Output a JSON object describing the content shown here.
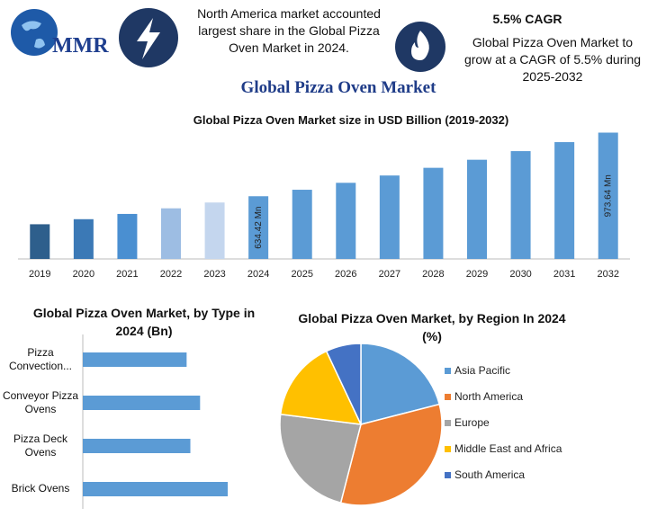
{
  "header": {
    "logo": "MMR",
    "left_note": "North America market accounted largest share in the Global Pizza Oven Market in 2024.",
    "cagr_title": "5.5% CAGR",
    "cagr_note": "Global Pizza Oven Market to grow at a CAGR of 5.5% during 2025-2032",
    "title": "Global Pizza Oven Market"
  },
  "chart_data": [
    {
      "type": "bar",
      "title": "Global Pizza Oven Market size in USD Billion (2019-2032)",
      "categories": [
        "2019",
        "2020",
        "2021",
        "2022",
        "2023",
        "2024",
        "2025",
        "2026",
        "2027",
        "2028",
        "2029",
        "2030",
        "2031",
        "2032"
      ],
      "values": [
        485,
        512,
        540,
        570,
        601,
        634.42,
        669,
        706,
        745,
        786,
        829,
        875,
        923,
        973.64
      ],
      "value_labels": [
        null,
        null,
        null,
        null,
        null,
        "634.42 Mn",
        null,
        null,
        null,
        null,
        null,
        null,
        null,
        "973.64 Mn"
      ],
      "colors": [
        "#2e5f8c",
        "#3b79b6",
        "#4a8fd1",
        "#9dbde3",
        "#c4d6ee",
        "#5b9bd5",
        "#5b9bd5",
        "#5b9bd5",
        "#5b9bd5",
        "#5b9bd5",
        "#5b9bd5",
        "#5b9bd5",
        "#5b9bd5",
        "#5b9bd5"
      ],
      "ylim": [
        300,
        1000
      ]
    },
    {
      "type": "bar",
      "orientation": "horizontal",
      "title": "Global Pizza Oven Market, by Type in 2024 (Bn)",
      "categories": [
        "Pizza Convection...",
        "Conveyor Pizza Ovens",
        "Pizza Deck Ovens",
        "Brick Ovens"
      ],
      "values": [
        0.139,
        0.157,
        0.144,
        0.194
      ],
      "color": "#5b9bd5",
      "xlim": [
        0,
        0.2
      ]
    },
    {
      "type": "pie",
      "title": "Global Pizza Oven Market, by Region In 2024 (%)",
      "labels": [
        "Asia Pacific",
        "North America",
        "Europe",
        "Middle East and Africa",
        "South America"
      ],
      "values": [
        21,
        33,
        23,
        16,
        7
      ],
      "colors": [
        "#5b9bd5",
        "#ed7d31",
        "#a5a5a5",
        "#ffc000",
        "#4472c4"
      ],
      "legend": "right"
    }
  ]
}
